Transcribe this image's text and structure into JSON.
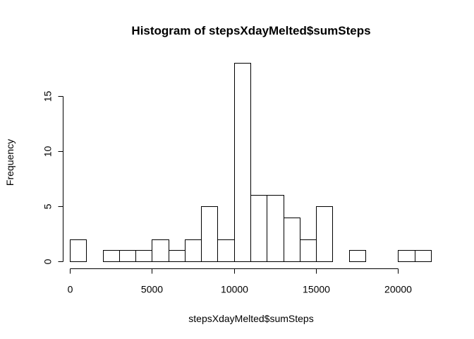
{
  "chart_data": {
    "type": "bar",
    "title": "Histogram of stepsXdayMelted$sumSteps",
    "xlabel": "stepsXdayMelted$sumSteps",
    "ylabel": "Frequency",
    "bin_width": 1000,
    "bins": [
      {
        "start": 0,
        "end": 1000,
        "count": 2
      },
      {
        "start": 1000,
        "end": 2000,
        "count": 0
      },
      {
        "start": 2000,
        "end": 3000,
        "count": 1
      },
      {
        "start": 3000,
        "end": 4000,
        "count": 1
      },
      {
        "start": 4000,
        "end": 5000,
        "count": 1
      },
      {
        "start": 5000,
        "end": 6000,
        "count": 2
      },
      {
        "start": 6000,
        "end": 7000,
        "count": 1
      },
      {
        "start": 7000,
        "end": 8000,
        "count": 2
      },
      {
        "start": 8000,
        "end": 9000,
        "count": 5
      },
      {
        "start": 9000,
        "end": 10000,
        "count": 2
      },
      {
        "start": 10000,
        "end": 11000,
        "count": 18
      },
      {
        "start": 11000,
        "end": 12000,
        "count": 6
      },
      {
        "start": 12000,
        "end": 13000,
        "count": 6
      },
      {
        "start": 13000,
        "end": 14000,
        "count": 4
      },
      {
        "start": 14000,
        "end": 15000,
        "count": 2
      },
      {
        "start": 15000,
        "end": 16000,
        "count": 5
      },
      {
        "start": 16000,
        "end": 17000,
        "count": 0
      },
      {
        "start": 17000,
        "end": 18000,
        "count": 1
      },
      {
        "start": 18000,
        "end": 19000,
        "count": 0
      },
      {
        "start": 19000,
        "end": 20000,
        "count": 0
      },
      {
        "start": 20000,
        "end": 21000,
        "count": 1
      },
      {
        "start": 21000,
        "end": 22000,
        "count": 1
      }
    ],
    "xlim": [
      0,
      22000
    ],
    "ylim": [
      0,
      18
    ],
    "x_ticks": [
      0,
      5000,
      10000,
      15000,
      20000
    ],
    "y_ticks": [
      0,
      5,
      10,
      15
    ],
    "grid": false,
    "legend": "none",
    "bar_fill": "#ffffff",
    "bar_stroke": "#000000"
  }
}
